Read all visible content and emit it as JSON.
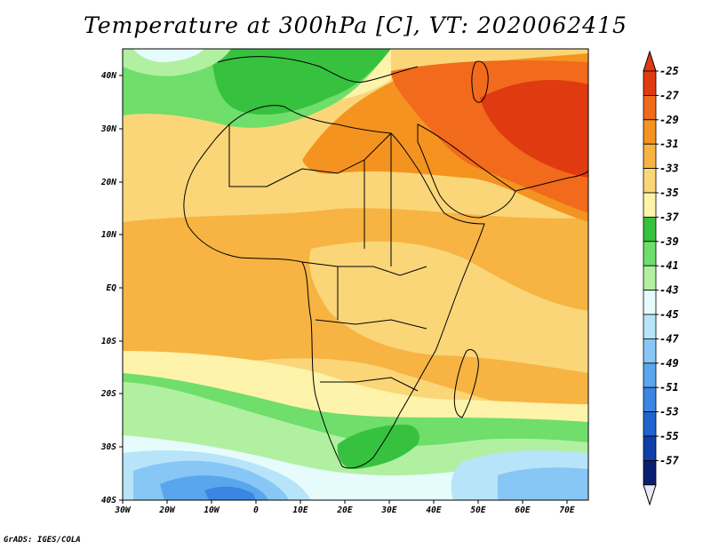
{
  "title": "Temperature at 300hPa [C], VT: 2020062415",
  "credit": "GrADS: IGES/COLA",
  "lat_labels": [
    "40N",
    "30N",
    "20N",
    "10N",
    "EQ",
    "10S",
    "20S",
    "30S",
    "40S"
  ],
  "lon_labels": [
    "30W",
    "20W",
    "10W",
    "0",
    "10E",
    "20E",
    "30E",
    "40E",
    "50E",
    "60E",
    "70E"
  ],
  "colorbar": {
    "labels": [
      "-25",
      "-27",
      "-29",
      "-31",
      "-33",
      "-35",
      "-37",
      "-39",
      "-41",
      "-43",
      "-45",
      "-47",
      "-49",
      "-51",
      "-53",
      "-55",
      "-57"
    ],
    "colors": [
      "#e03a10",
      "#f26a1c",
      "#f4931f",
      "#f7b443",
      "#fad679",
      "#fdf3aa",
      "#36c23f",
      "#6fde6b",
      "#b1f0a1",
      "#e6fbfb",
      "#b7e4f9",
      "#88c6f5",
      "#5aa6ee",
      "#3a86e2",
      "#1f63cf",
      "#0f3fa8",
      "#0a1f72"
    ],
    "high_color": "#e03a10",
    "low_color": "#e8e8f8"
  }
}
